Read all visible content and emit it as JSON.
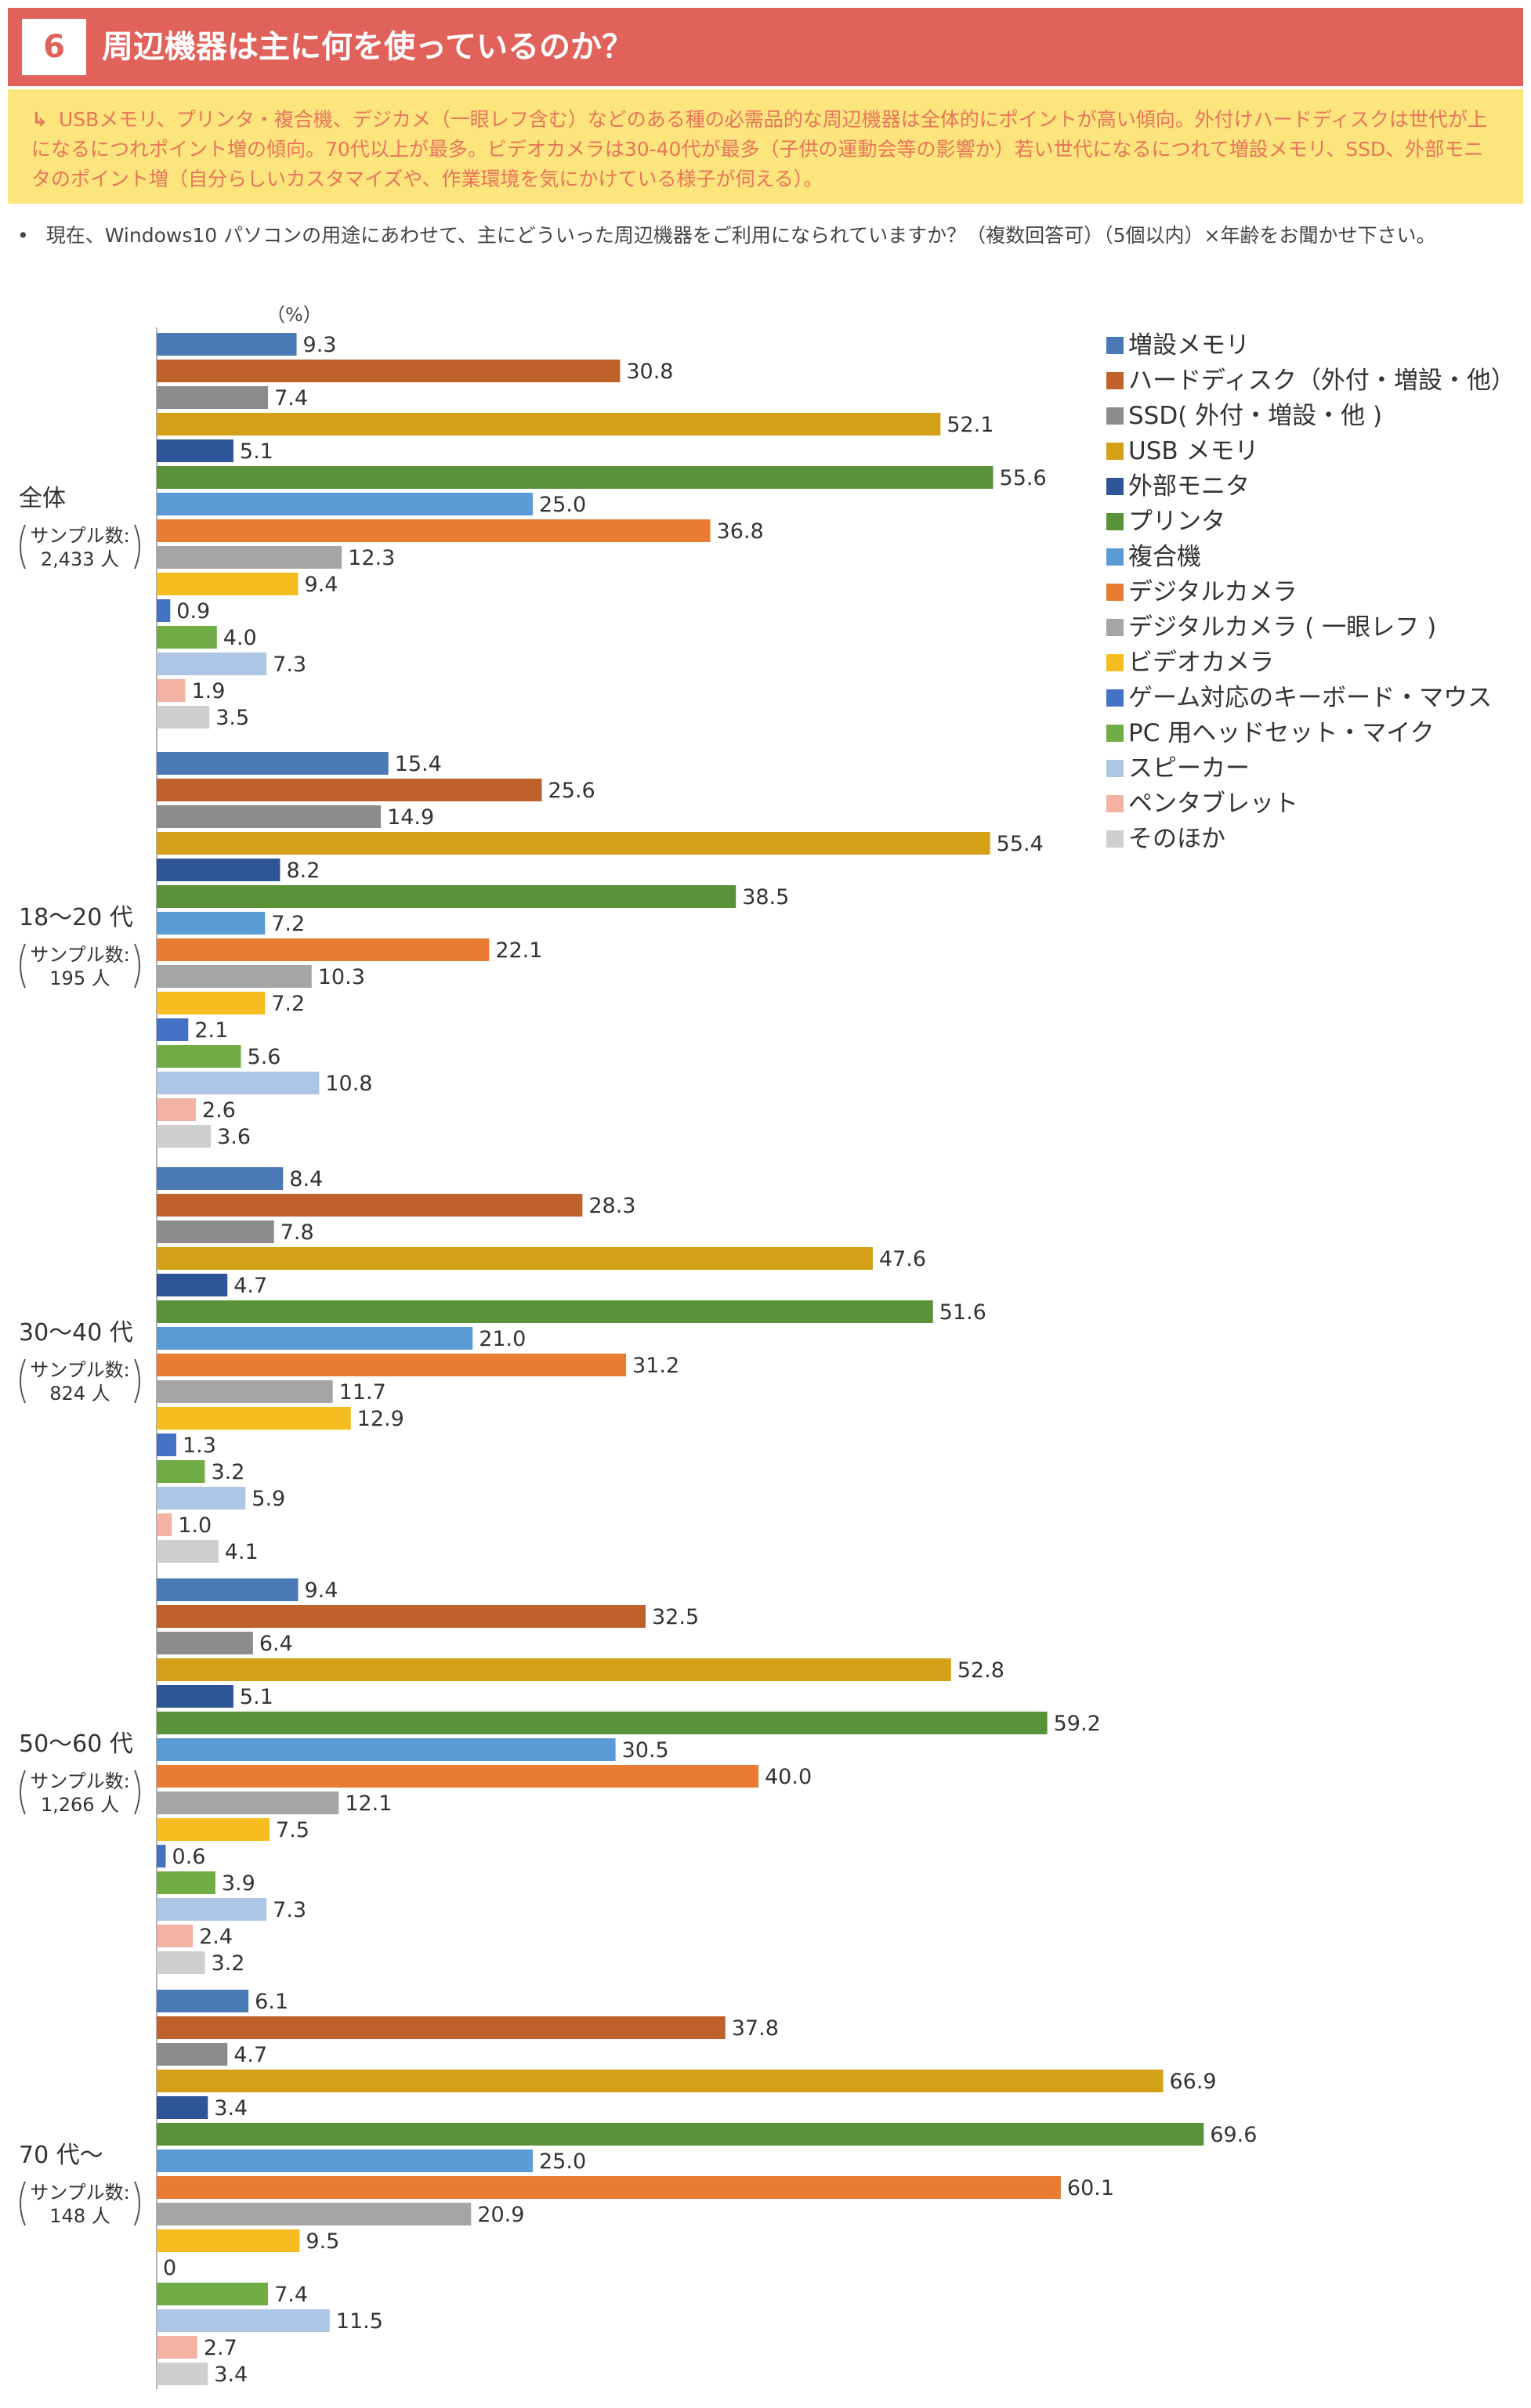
{
  "header": {
    "number": "6",
    "title": "周辺機器は主に何を使っているのか？"
  },
  "note": {
    "arrow": "↳",
    "text": "USBメモリ、プリンタ・複合機、デジカメ（一眼レフ含む）などのある種の必需品的な周辺機器は全体的にポイントが高い傾向。外付けハードディスクは世代が上になるにつれポイント増の傾向。70代以上が最多。ビデオカメラは30-40代が最多（子供の運動会等の影響か）若い世代になるにつれて増設メモリ、SSD、外部モニタのポイント増（自分らしいカスタマイズや、作業環境を気にかけている様子が伺える）。"
  },
  "question": {
    "bullet": "•",
    "text": "現在、Windows10 パソコンの用途にあわせて、主にどういった周辺機器をご利用になられていますか？（複数回答可）（5個以内）×年齢をお聞かせ下さい。"
  },
  "chart_data": {
    "type": "bar",
    "orientation": "horizontal",
    "unit_label": "（%）",
    "xlim": [
      0,
      100
    ],
    "grid": false,
    "legend_position": "right",
    "series": [
      {
        "name": "増設メモリ",
        "color": "#4a7ab5"
      },
      {
        "name": "ハードディスク（外付・増設・他）",
        "color": "#c0612c"
      },
      {
        "name": "SSD( 外付・増設・他 )",
        "color": "#8c8c8c"
      },
      {
        "name": "USB メモリ",
        "color": "#d4a017"
      },
      {
        "name": "外部モニタ",
        "color": "#2e5597"
      },
      {
        "name": "プリンタ",
        "color": "#58933a"
      },
      {
        "name": "複合機",
        "color": "#5b9bd5"
      },
      {
        "name": "デジタルカメラ",
        "color": "#e97c32"
      },
      {
        "name": "デジタルカメラ ( 一眼レフ )",
        "color": "#a5a5a5"
      },
      {
        "name": "ビデオカメラ",
        "color": "#f5bd1f"
      },
      {
        "name": "ゲーム対応のキーボード・マウス",
        "color": "#4472c4"
      },
      {
        "name": "PC 用ヘッドセット・マイク",
        "color": "#70ad47"
      },
      {
        "name": "スピーカー",
        "color": "#adc6e5"
      },
      {
        "name": "ペンタブレット",
        "color": "#f3b3a3"
      },
      {
        "name": "そのほか",
        "color": "#cfcfcf"
      }
    ],
    "groups": [
      {
        "label": "全体",
        "sample_label": "サンプル数:",
        "sample_size": "2,433 人",
        "values": [
          9.3,
          30.8,
          7.4,
          52.1,
          5.1,
          55.6,
          25.0,
          36.8,
          12.3,
          9.4,
          0.9,
          4.0,
          7.3,
          1.9,
          3.5
        ]
      },
      {
        "label": "18～20 代",
        "sample_label": "サンプル数:",
        "sample_size": "195 人",
        "values": [
          15.4,
          25.6,
          14.9,
          55.4,
          8.2,
          38.5,
          7.2,
          22.1,
          10.3,
          7.2,
          2.1,
          5.6,
          10.8,
          2.6,
          3.6
        ]
      },
      {
        "label": "30～40 代",
        "sample_label": "サンプル数:",
        "sample_size": "824 人",
        "values": [
          8.4,
          28.3,
          7.8,
          47.6,
          4.7,
          51.6,
          21.0,
          31.2,
          11.7,
          12.9,
          1.3,
          3.2,
          5.9,
          1.0,
          4.1
        ]
      },
      {
        "label": "50～60 代",
        "sample_label": "サンプル数:",
        "sample_size": "1,266 人",
        "values": [
          9.4,
          32.5,
          6.4,
          52.8,
          5.1,
          59.2,
          30.5,
          40.0,
          12.1,
          7.5,
          0.6,
          3.9,
          7.3,
          2.4,
          3.2
        ]
      },
      {
        "label": "70 代～",
        "sample_label": "サンプル数:",
        "sample_size": "148 人",
        "values": [
          6.1,
          37.8,
          4.7,
          66.9,
          3.4,
          69.6,
          25.0,
          60.1,
          20.9,
          9.5,
          0,
          7.4,
          11.5,
          2.7,
          3.4
        ]
      }
    ]
  }
}
